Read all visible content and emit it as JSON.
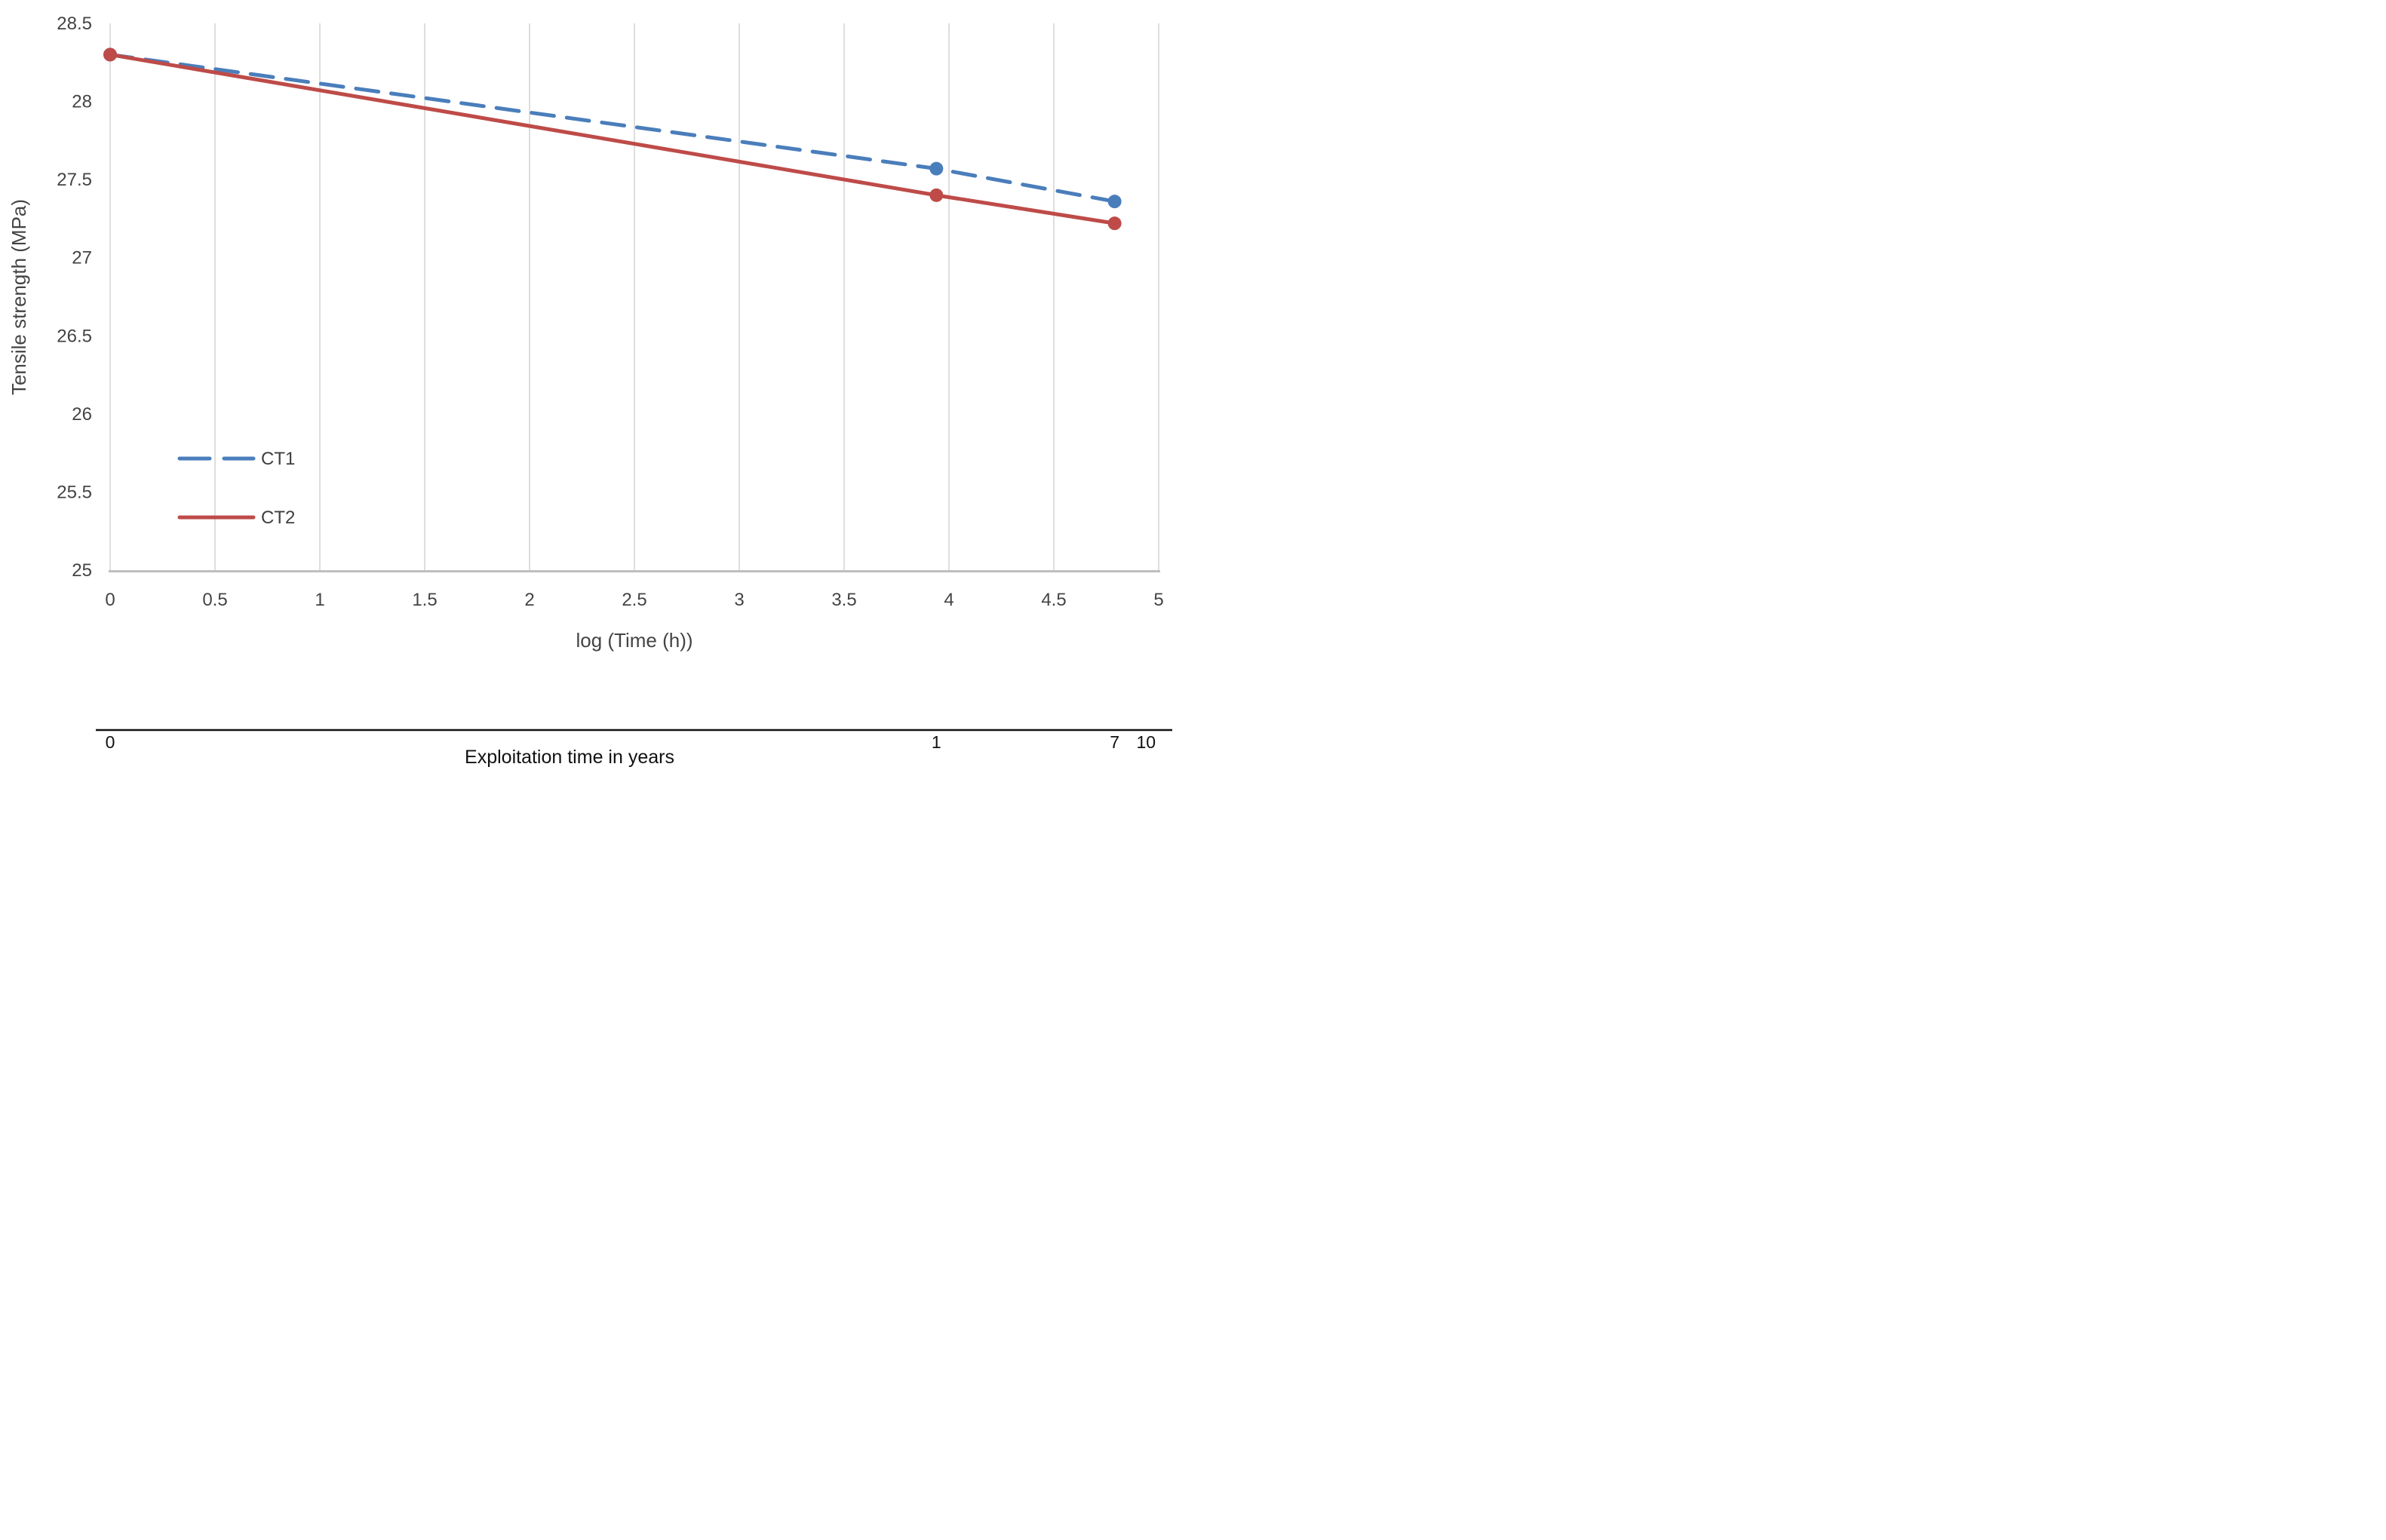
{
  "chart_data": {
    "type": "line",
    "title": "",
    "xlabel": "log (Time (h))",
    "ylabel": "Tensile strength  (MPa)",
    "xlim": [
      0,
      5
    ],
    "ylim": [
      25,
      28.5
    ],
    "x_ticks": [
      0,
      0.5,
      1,
      1.5,
      2,
      2.5,
      3,
      3.5,
      4,
      4.5,
      5
    ],
    "y_ticks": [
      25,
      25.5,
      26,
      26.5,
      27,
      27.5,
      28,
      28.5
    ],
    "grid": "vertical-only",
    "legend_position": "inside-left-middle",
    "series": [
      {
        "name": "CT1",
        "color": "#4A7EBB",
        "style": "dashed",
        "marker": "circle",
        "x": [
          0,
          3.94,
          4.79
        ],
        "y": [
          28.3,
          27.57,
          27.36
        ]
      },
      {
        "name": "CT2",
        "color": "#BE4B48",
        "style": "solid",
        "marker": "circle",
        "x": [
          0,
          3.94,
          4.79
        ],
        "y": [
          28.3,
          27.4,
          27.22
        ]
      }
    ],
    "secondary_x_axis": {
      "title": "Exploitation time in years",
      "labels": [
        {
          "text": "0",
          "x": 0
        },
        {
          "text": "1",
          "x": 3.94
        },
        {
          "text": "7",
          "x": 4.79
        },
        {
          "text": "10",
          "x": 4.94
        }
      ]
    }
  },
  "colors": {
    "grid": "#D6D6D6",
    "axis_line": "#BFBFBF",
    "tick_text": "#444444",
    "legend_text": "#404040",
    "secondary_axis": "#111111",
    "ct1_blue": "#4A7EBB",
    "ct2_red": "#BE4B48"
  }
}
